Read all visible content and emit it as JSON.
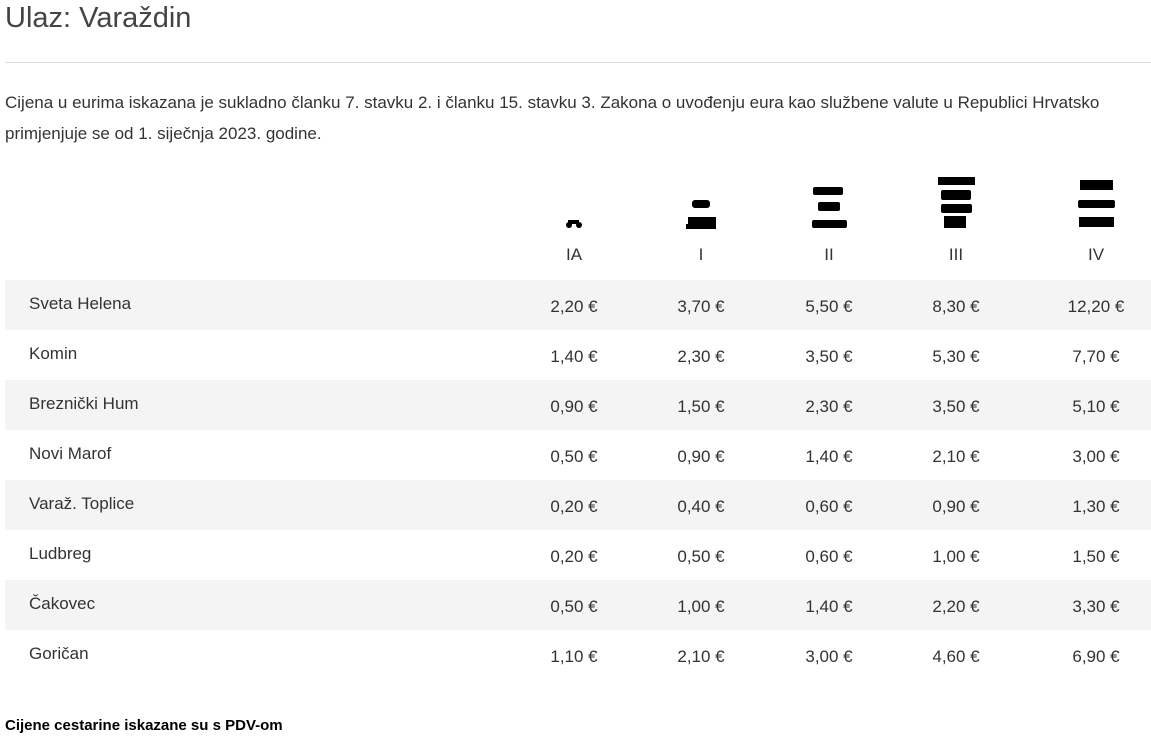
{
  "header": {
    "title": "Ulaz: Varaždin"
  },
  "note": {
    "lines": [
      "Cijena u eurima iskazana je sukladno članku 7. stavku 2. i članku 15. stavku 3. Zakona o uvođenju eura kao službene valute u Republici Hrvatsko",
      "primjenjuje se od 1. siječnja 2023. godine."
    ]
  },
  "table": {
    "columns": [
      "IA",
      "I",
      "II",
      "III",
      "IV"
    ],
    "rows": [
      [
        "Sveta Helena",
        "2,20 €",
        "3,70 €",
        "5,50 €",
        "8,30 €",
        "12,20 €"
      ],
      [
        "Komin",
        "1,40 €",
        "2,30 €",
        "3,50 €",
        "5,30 €",
        "7,70 €"
      ],
      [
        "Breznički Hum",
        "0,90 €",
        "1,50 €",
        "2,30 €",
        "3,50 €",
        "5,10 €"
      ],
      [
        "Novi Marof",
        "0,50 €",
        "0,90 €",
        "1,40 €",
        "2,10 €",
        "3,00 €"
      ],
      [
        "Varaž. Toplice",
        "0,20 €",
        "0,40 €",
        "0,60 €",
        "0,90 €",
        "1,30 €"
      ],
      [
        "Ludbreg",
        "0,20 €",
        "0,50 €",
        "0,60 €",
        "1,00 €",
        "1,50 €"
      ],
      [
        "Čakovec",
        "0,50 €",
        "1,00 €",
        "1,40 €",
        "2,20 €",
        "3,30 €"
      ],
      [
        "Goričan",
        "1,10 €",
        "2,10 €",
        "3,00 €",
        "4,60 €",
        "6,90 €"
      ]
    ]
  },
  "footer": {
    "text": "Cijene cestarine iskazane su s PDV-om"
  }
}
